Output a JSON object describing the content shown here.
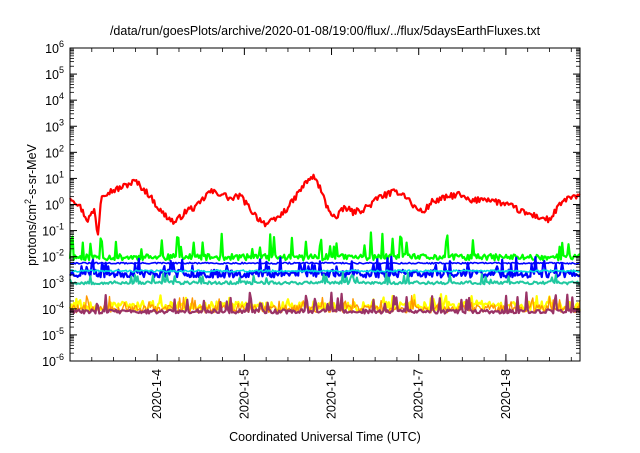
{
  "chart_data": {
    "type": "line",
    "title": "/data/run/goesPlots/archive/2020-01-08/19:00/flux/../flux/5daysEarthFluxes.txt",
    "xlabel": "Coordinated Universal Time (UTC)",
    "ylabel_base": "protons/cm",
    "ylabel_sup": "2",
    "ylabel_rest": "-s-sr-MeV",
    "y_scale": "log",
    "ylim_exp": [
      -6,
      6
    ],
    "y_tick_exponents": [
      -6,
      -5,
      -4,
      -3,
      -2,
      -1,
      0,
      1,
      2,
      3,
      4,
      5,
      6
    ],
    "y_tick_base": "10",
    "xlim_days": [
      3.0,
      8.85
    ],
    "x_ticks": [
      {
        "label": "2020-1-4",
        "day": 4
      },
      {
        "label": "2020-1-5",
        "day": 5
      },
      {
        "label": "2020-1-6",
        "day": 6
      },
      {
        "label": "2020-1-7",
        "day": 7
      },
      {
        "label": "2020-1-8",
        "day": 8
      }
    ],
    "grid": false,
    "legend": "none",
    "series": [
      {
        "key": "red",
        "color": "#ff0000",
        "width": 2.2,
        "anchors": [
          [
            3.0,
            0.3
          ],
          [
            3.1,
            0.0
          ],
          [
            3.2,
            -0.6
          ],
          [
            3.28,
            -0.2
          ],
          [
            3.32,
            -1.2
          ],
          [
            3.36,
            0.4
          ],
          [
            3.55,
            0.6
          ],
          [
            3.75,
            0.9
          ],
          [
            3.9,
            0.4
          ],
          [
            4.05,
            -0.3
          ],
          [
            4.2,
            -0.7
          ],
          [
            4.35,
            -0.2
          ],
          [
            4.45,
            -0.1
          ],
          [
            4.6,
            0.5
          ],
          [
            4.75,
            0.4
          ],
          [
            4.85,
            0.2
          ],
          [
            4.95,
            0.35
          ],
          [
            5.05,
            -0.1
          ],
          [
            5.15,
            -0.5
          ],
          [
            5.25,
            -0.75
          ],
          [
            5.35,
            -0.6
          ],
          [
            5.45,
            -0.3
          ],
          [
            5.55,
            0.1
          ],
          [
            5.65,
            0.6
          ],
          [
            5.75,
            1.0
          ],
          [
            5.8,
            1.05
          ],
          [
            5.86,
            0.7
          ],
          [
            5.95,
            -0.1
          ],
          [
            6.05,
            -0.55
          ],
          [
            6.15,
            -0.1
          ],
          [
            6.25,
            -0.3
          ],
          [
            6.35,
            -0.2
          ],
          [
            6.45,
            0.0
          ],
          [
            6.55,
            0.3
          ],
          [
            6.65,
            0.4
          ],
          [
            6.75,
            0.5
          ],
          [
            6.85,
            0.35
          ],
          [
            6.95,
            -0.1
          ],
          [
            7.05,
            -0.3
          ],
          [
            7.15,
            0.1
          ],
          [
            7.3,
            0.25
          ],
          [
            7.45,
            0.4
          ],
          [
            7.6,
            0.1
          ],
          [
            7.75,
            0.25
          ],
          [
            7.9,
            0.1
          ],
          [
            8.05,
            -0.05
          ],
          [
            8.2,
            -0.3
          ],
          [
            8.4,
            -0.5
          ],
          [
            8.5,
            -0.6
          ],
          [
            8.6,
            -0.1
          ],
          [
            8.7,
            0.25
          ],
          [
            8.85,
            0.3
          ]
        ],
        "base": null,
        "noise": 0.12,
        "spikes": 0
      },
      {
        "key": "green",
        "color": "#00ff00",
        "width": 2.2,
        "anchors": null,
        "base": -2.02,
        "noise": 0.12,
        "spikes": 0.85,
        "seed": 11
      },
      {
        "key": "blue",
        "color": "#0000ff",
        "width": 2.2,
        "anchors": null,
        "base": -2.65,
        "noise": 0.15,
        "spikes": 0.55,
        "seed": 23
      },
      {
        "key": "blue-flat",
        "color": "#0000ff",
        "width": 1.6,
        "anchors": null,
        "base": -2.25,
        "noise": 0.03,
        "spikes": 0.0,
        "seed": 31
      },
      {
        "key": "cyan",
        "color": "#00dddd",
        "width": 1.6,
        "anchors": null,
        "base": -2.55,
        "noise": 0.04,
        "spikes": 0.0,
        "seed": 41
      },
      {
        "key": "teal",
        "color": "#20c8a0",
        "width": 2.0,
        "anchors": null,
        "base": -3.0,
        "noise": 0.06,
        "spikes": 0.35,
        "seed": 53
      },
      {
        "key": "yellow",
        "color": "#ffff00",
        "width": 2.2,
        "anchors": null,
        "base": -3.9,
        "noise": 0.18,
        "spikes": 0.3,
        "seed": 67
      },
      {
        "key": "orange",
        "color": "#ff9900",
        "width": 1.4,
        "anchors": null,
        "base": -4.0,
        "noise": 0.15,
        "spikes": 0.5,
        "seed": 71
      },
      {
        "key": "purple",
        "color": "#993366",
        "width": 2.2,
        "anchors": null,
        "base": -4.1,
        "noise": 0.08,
        "spikes": 0.7,
        "seed": 83
      }
    ]
  }
}
